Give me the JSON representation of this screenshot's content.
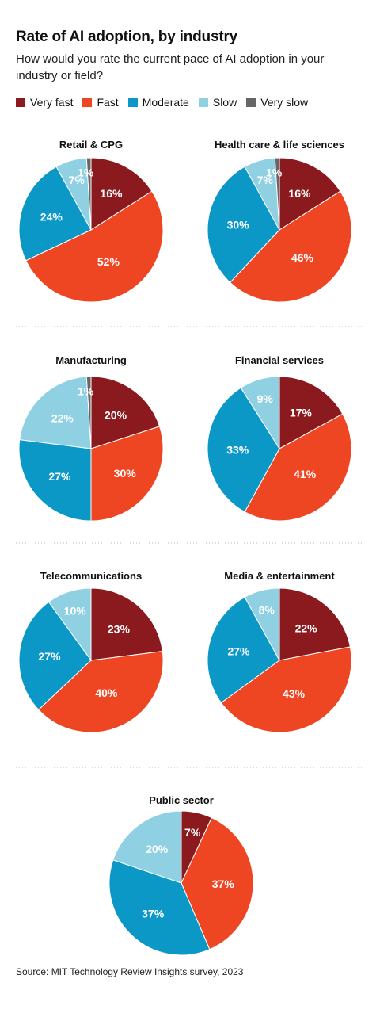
{
  "title": "Rate of AI adoption, by industry",
  "subtitle": "How would you rate the current pace of AI adoption in your industry or field?",
  "source": "Source: MIT Technology Review Insights survey, 2023",
  "colors": {
    "Very fast": "#8b1a1f",
    "Fast": "#ee4523",
    "Moderate": "#0b98c7",
    "Slow": "#8fd0e3",
    "Very slow": "#666666"
  },
  "chart_data": {
    "type": "pie",
    "categories": [
      "Very fast",
      "Fast",
      "Moderate",
      "Slow",
      "Very slow"
    ],
    "legend": [
      "Very fast",
      "Fast",
      "Moderate",
      "Slow",
      "Very slow"
    ],
    "legend_position": "top-left",
    "charts": [
      {
        "title": "Retail & CPG",
        "values": [
          16,
          52,
          24,
          7,
          1
        ],
        "labels": [
          "16%",
          "52%",
          "24%",
          "7%",
          "1%"
        ]
      },
      {
        "title": "Health care & life sciences",
        "values": [
          16,
          46,
          30,
          7,
          1
        ],
        "labels": [
          "16%",
          "46%",
          "30%",
          "7%",
          "1%"
        ]
      },
      {
        "title": "Manufacturing",
        "values": [
          20,
          30,
          27,
          22,
          1
        ],
        "labels": [
          "20%",
          "30%",
          "27%",
          "22%",
          "1%"
        ]
      },
      {
        "title": "Financial services",
        "values": [
          17,
          41,
          33,
          9,
          0
        ],
        "labels": [
          "17%",
          "41%",
          "33%",
          "9%",
          ""
        ]
      },
      {
        "title": "Telecommunications",
        "values": [
          23,
          40,
          27,
          10,
          0
        ],
        "labels": [
          "23%",
          "40%",
          "27%",
          "10%",
          ""
        ]
      },
      {
        "title": "Media & entertainment",
        "values": [
          22,
          43,
          27,
          8,
          0
        ],
        "labels": [
          "22%",
          "43%",
          "27%",
          "8%",
          ""
        ]
      },
      {
        "title": "Public sector",
        "values": [
          7,
          37,
          37,
          20,
          0
        ],
        "labels": [
          "7%",
          "37%",
          "37%",
          "20%",
          ""
        ]
      }
    ]
  }
}
